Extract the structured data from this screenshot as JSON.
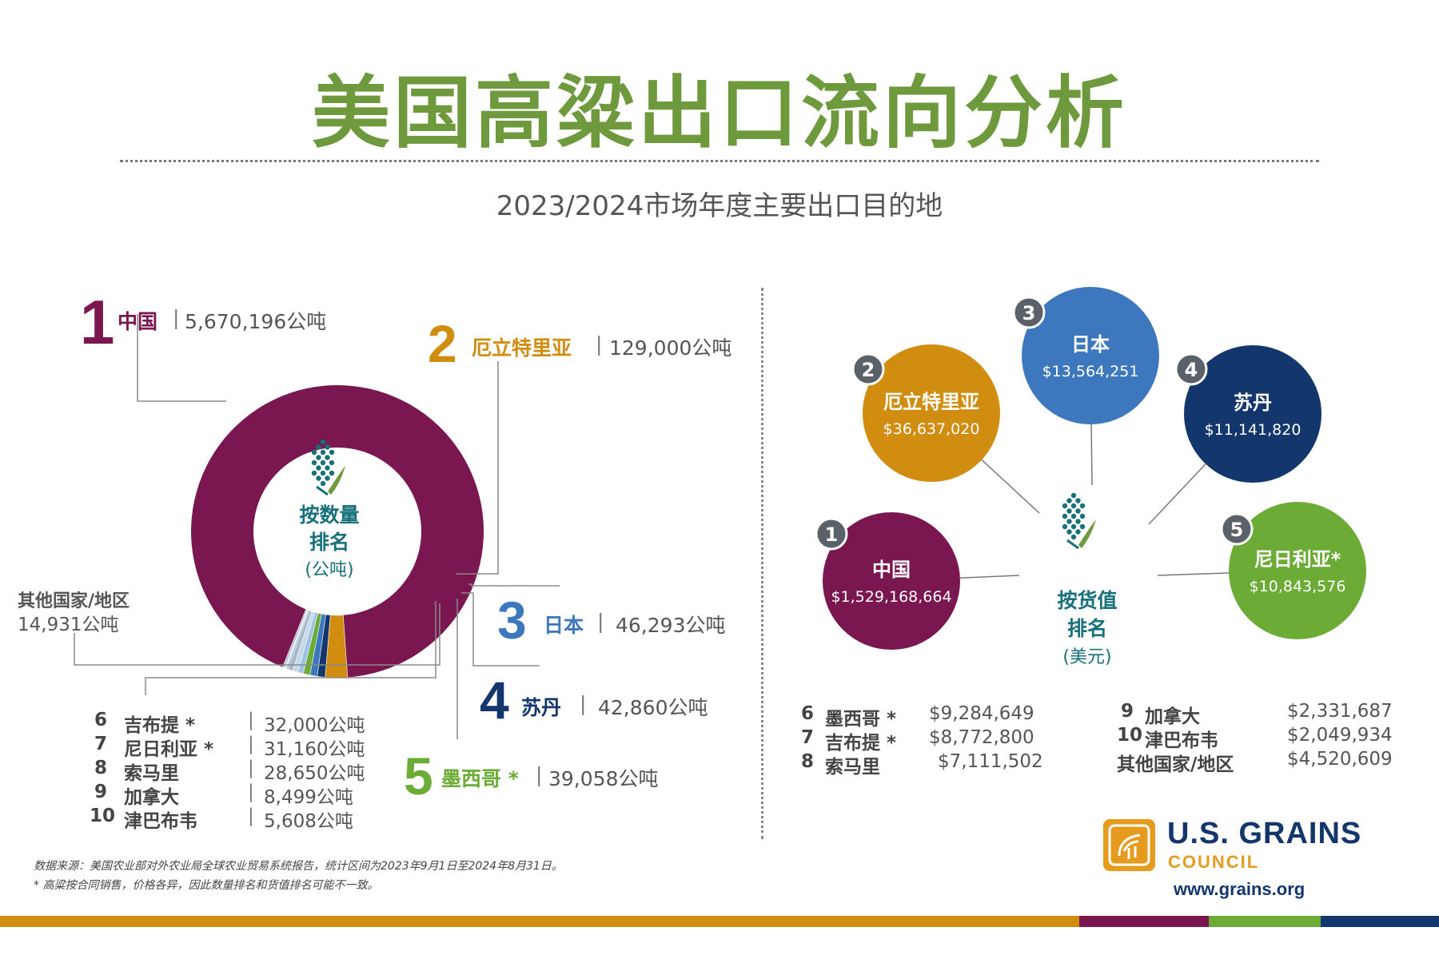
{
  "title": "美国高粱出口流向分析",
  "subtitle": "2023/2024市场年度主要出口目的地",
  "colors": {
    "green": "#6e9a3d",
    "purple": "#7a1750",
    "orange": "#d18d10",
    "blue": "#3d78bf",
    "navy": "#13376c",
    "lightgreen": "#6bab36",
    "teal": "#17707a",
    "grey": "#5a6169"
  },
  "chart_data": [
    {
      "type": "pie",
      "center_label": [
        "按数量",
        "排名"
      ],
      "center_unit": "(公吨)",
      "unit": "公吨",
      "slices": [
        {
          "rank": "1",
          "name": "中国",
          "value": 5670196,
          "value_text": "5,670,196公吨"
        },
        {
          "rank": "2",
          "name": "厄立特里亚",
          "value": 129000,
          "value_text": "129,000公吨"
        },
        {
          "rank": "3",
          "name": "日本",
          "value": 46293,
          "value_text": "46,293公吨"
        },
        {
          "rank": "4",
          "name": "苏丹",
          "value": 42860,
          "value_text": "42,860公吨"
        },
        {
          "rank": "5",
          "name": "墨西哥 *",
          "value": 39058,
          "value_text": "39,058公吨"
        },
        {
          "rank": "6",
          "name": "吉布提 *",
          "value": 32000,
          "value_text": "32,000公吨"
        },
        {
          "rank": "7",
          "name": "尼日利亚 *",
          "value": 31160,
          "value_text": "31,160公吨"
        },
        {
          "rank": "8",
          "name": "索马里",
          "value": 28650,
          "value_text": "28,650公吨"
        },
        {
          "rank": "9",
          "name": "加拿大",
          "value": 8499,
          "value_text": "8,499公吨"
        },
        {
          "rank": "10",
          "name": "津巴布韦",
          "value": 5608,
          "value_text": "5,608公吨"
        },
        {
          "rank": "",
          "name": "其他国家/地区",
          "value": 14931,
          "value_text": "14,931公吨"
        }
      ]
    },
    {
      "type": "table",
      "center_label": [
        "按货值",
        "排名"
      ],
      "center_unit": "(美元)",
      "unit": "美元",
      "rows": [
        {
          "rank": "1",
          "name": "中国",
          "value_text": "$1,529,168,664",
          "value": 1529168664
        },
        {
          "rank": "2",
          "name": "厄立特里亚",
          "value_text": "$36,637,020",
          "value": 36637020
        },
        {
          "rank": "3",
          "name": "日本",
          "value_text": "$13,564,251",
          "value": 13564251
        },
        {
          "rank": "4",
          "name": "苏丹",
          "value_text": "$11,141,820",
          "value": 11141820
        },
        {
          "rank": "5",
          "name": "尼日利亚*",
          "value_text": "$10,843,576",
          "value": 10843576
        },
        {
          "rank": "6",
          "name": "墨西哥 *",
          "value_text": "$9,284,649",
          "value": 9284649
        },
        {
          "rank": "7",
          "name": "吉布提 *",
          "value_text": "$8,772,800",
          "value": 8772800
        },
        {
          "rank": "8",
          "name": "索马里",
          "value_text": "$7,111,502",
          "value": 7111502
        },
        {
          "rank": "9",
          "name": "加拿大",
          "value_text": "$2,331,687",
          "value": 2331687
        },
        {
          "rank": "10",
          "name": "津巴布韦",
          "value_text": "$2,049,934",
          "value": 2049934
        },
        {
          "rank": "",
          "name": "其他国家/地区",
          "value_text": "$4,520,609",
          "value": 4520609
        }
      ]
    }
  ],
  "notes": {
    "source": "数据来源：美国农业部对外农业局全球农业贸易系统报告，统计区间为2023年9月1日至2024年8月31日。",
    "footnote": "* 高粱按合同销售，价格各异，因此数量排名和货值排名可能不一致。"
  },
  "logo": {
    "line1": "U.S. GRAINS",
    "line2": "COUNCIL",
    "url": "www.grains.org"
  },
  "sep": "|"
}
